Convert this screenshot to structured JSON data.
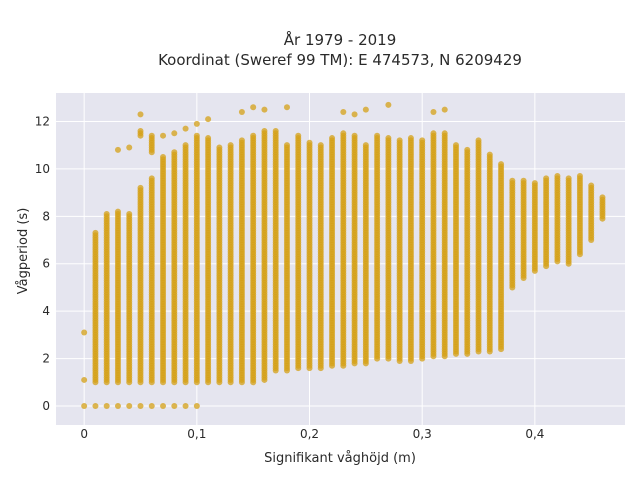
{
  "chart_data": {
    "type": "scatter",
    "title_line1": "År 1979 - 2019",
    "title_line2": "Koordinat (Sweref 99 TM): E 474573, N 6209429",
    "xlabel": "Signifikant våghöjd (m)",
    "ylabel": "Vågperiod (s)",
    "xlim": [
      -0.025,
      0.48
    ],
    "ylim": [
      -0.8,
      13.2
    ],
    "x_ticks": [
      0,
      0.1,
      0.2,
      0.3,
      0.4
    ],
    "x_tick_labels": [
      "0",
      "0,1",
      "0,2",
      "0,3",
      "0,4"
    ],
    "y_ticks": [
      0,
      2,
      4,
      6,
      8,
      10,
      12
    ],
    "y_tick_labels": [
      "0",
      "2",
      "4",
      "6",
      "8",
      "10",
      "12"
    ],
    "grid": true,
    "legend": "none",
    "background_color": "#e5e5ef",
    "marker_color": "#d4a017",
    "column_step": 0.01,
    "columns": [
      {
        "x": 0.0,
        "ranges": [
          [
            0,
            0
          ],
          [
            1.1,
            1.1
          ],
          [
            3.1,
            3.1
          ]
        ]
      },
      {
        "x": 0.01,
        "ranges": [
          [
            0,
            0
          ],
          [
            1.0,
            7.3
          ]
        ]
      },
      {
        "x": 0.02,
        "ranges": [
          [
            0,
            0
          ],
          [
            1.0,
            8.1
          ]
        ]
      },
      {
        "x": 0.03,
        "ranges": [
          [
            0,
            0
          ],
          [
            1.0,
            8.2
          ],
          [
            10.8,
            10.8
          ]
        ]
      },
      {
        "x": 0.04,
        "ranges": [
          [
            0,
            0
          ],
          [
            1.0,
            8.1
          ],
          [
            10.9,
            10.9
          ]
        ]
      },
      {
        "x": 0.05,
        "ranges": [
          [
            0,
            0
          ],
          [
            1.0,
            9.2
          ],
          [
            11.4,
            11.6
          ],
          [
            12.3,
            12.3
          ]
        ]
      },
      {
        "x": 0.06,
        "ranges": [
          [
            0,
            0
          ],
          [
            1.0,
            9.6
          ],
          [
            10.7,
            11.4
          ]
        ]
      },
      {
        "x": 0.07,
        "ranges": [
          [
            0,
            0
          ],
          [
            1.0,
            10.5
          ],
          [
            11.4,
            11.4
          ]
        ]
      },
      {
        "x": 0.08,
        "ranges": [
          [
            0,
            0
          ],
          [
            1.0,
            10.7
          ],
          [
            11.5,
            11.5
          ]
        ]
      },
      {
        "x": 0.09,
        "ranges": [
          [
            0,
            0
          ],
          [
            1.0,
            11.0
          ],
          [
            11.7,
            11.7
          ]
        ]
      },
      {
        "x": 0.1,
        "ranges": [
          [
            0,
            0
          ],
          [
            1.0,
            11.4
          ],
          [
            11.9,
            11.9
          ]
        ]
      },
      {
        "x": 0.11,
        "ranges": [
          [
            1.0,
            11.3
          ],
          [
            12.1,
            12.1
          ]
        ]
      },
      {
        "x": 0.12,
        "ranges": [
          [
            1.0,
            10.9
          ]
        ]
      },
      {
        "x": 0.13,
        "ranges": [
          [
            1.0,
            11.0
          ]
        ]
      },
      {
        "x": 0.14,
        "ranges": [
          [
            1.0,
            11.2
          ],
          [
            12.4,
            12.4
          ]
        ]
      },
      {
        "x": 0.15,
        "ranges": [
          [
            1.0,
            11.4
          ],
          [
            12.6,
            12.6
          ]
        ]
      },
      {
        "x": 0.16,
        "ranges": [
          [
            1.1,
            11.6
          ],
          [
            12.5,
            12.5
          ]
        ]
      },
      {
        "x": 0.17,
        "ranges": [
          [
            1.5,
            11.6
          ]
        ]
      },
      {
        "x": 0.18,
        "ranges": [
          [
            1.5,
            11.0
          ],
          [
            12.6,
            12.6
          ]
        ]
      },
      {
        "x": 0.19,
        "ranges": [
          [
            1.6,
            11.4
          ]
        ]
      },
      {
        "x": 0.2,
        "ranges": [
          [
            1.6,
            11.1
          ]
        ]
      },
      {
        "x": 0.21,
        "ranges": [
          [
            1.6,
            11.0
          ]
        ]
      },
      {
        "x": 0.22,
        "ranges": [
          [
            1.7,
            11.3
          ]
        ]
      },
      {
        "x": 0.23,
        "ranges": [
          [
            1.7,
            11.5
          ],
          [
            12.4,
            12.4
          ]
        ]
      },
      {
        "x": 0.24,
        "ranges": [
          [
            1.8,
            11.4
          ],
          [
            12.3,
            12.3
          ]
        ]
      },
      {
        "x": 0.25,
        "ranges": [
          [
            1.8,
            11.0
          ],
          [
            12.5,
            12.5
          ]
        ]
      },
      {
        "x": 0.26,
        "ranges": [
          [
            2.0,
            11.4
          ]
        ]
      },
      {
        "x": 0.27,
        "ranges": [
          [
            2.0,
            11.3
          ],
          [
            12.7,
            12.7
          ]
        ]
      },
      {
        "x": 0.28,
        "ranges": [
          [
            1.9,
            11.2
          ]
        ]
      },
      {
        "x": 0.29,
        "ranges": [
          [
            1.9,
            11.3
          ]
        ]
      },
      {
        "x": 0.3,
        "ranges": [
          [
            2.0,
            11.2
          ]
        ]
      },
      {
        "x": 0.31,
        "ranges": [
          [
            2.1,
            11.5
          ],
          [
            12.4,
            12.4
          ]
        ]
      },
      {
        "x": 0.32,
        "ranges": [
          [
            2.1,
            11.5
          ],
          [
            12.5,
            12.5
          ]
        ]
      },
      {
        "x": 0.33,
        "ranges": [
          [
            2.2,
            11.0
          ]
        ]
      },
      {
        "x": 0.34,
        "ranges": [
          [
            2.2,
            10.8
          ]
        ]
      },
      {
        "x": 0.35,
        "ranges": [
          [
            2.3,
            11.2
          ]
        ]
      },
      {
        "x": 0.36,
        "ranges": [
          [
            2.3,
            10.6
          ]
        ]
      },
      {
        "x": 0.37,
        "ranges": [
          [
            2.4,
            10.2
          ]
        ]
      },
      {
        "x": 0.38,
        "ranges": [
          [
            5.0,
            9.5
          ]
        ]
      },
      {
        "x": 0.39,
        "ranges": [
          [
            5.4,
            9.5
          ]
        ]
      },
      {
        "x": 0.4,
        "ranges": [
          [
            5.7,
            9.4
          ]
        ]
      },
      {
        "x": 0.41,
        "ranges": [
          [
            5.9,
            9.6
          ]
        ]
      },
      {
        "x": 0.42,
        "ranges": [
          [
            6.1,
            9.7
          ]
        ]
      },
      {
        "x": 0.43,
        "ranges": [
          [
            6.0,
            9.6
          ]
        ]
      },
      {
        "x": 0.44,
        "ranges": [
          [
            6.4,
            9.7
          ]
        ]
      },
      {
        "x": 0.45,
        "ranges": [
          [
            7.0,
            9.3
          ]
        ]
      },
      {
        "x": 0.46,
        "ranges": [
          [
            7.9,
            8.8
          ]
        ]
      }
    ]
  }
}
